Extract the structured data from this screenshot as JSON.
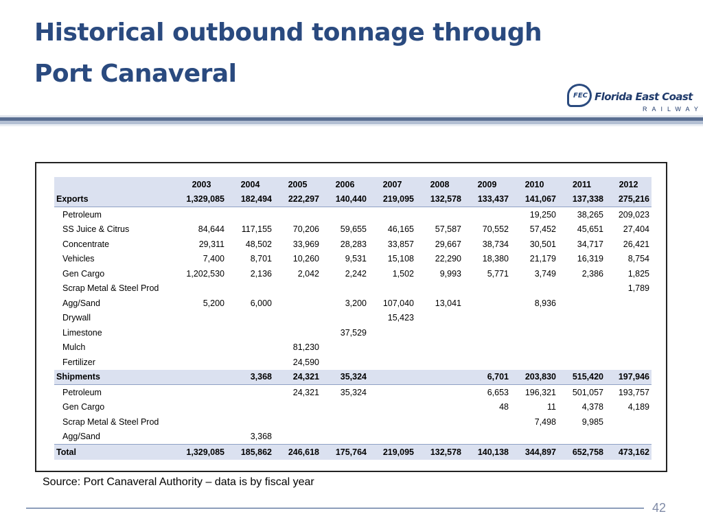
{
  "title": {
    "line1": "Historical outbound tonnage through",
    "line2": "Port Canaveral"
  },
  "logo": {
    "mark": "FEC",
    "name": "Florida East Coast",
    "sub": "RAILWAY",
    "icon": "fec-logo-icon"
  },
  "table": {
    "years": [
      "2003",
      "2004",
      "2005",
      "2006",
      "2007",
      "2008",
      "2009",
      "2010",
      "2011",
      "2012"
    ],
    "rows": [
      {
        "kind": "group",
        "label": "Exports",
        "values": [
          "1,329,085",
          "182,494",
          "222,297",
          "140,440",
          "219,095",
          "132,578",
          "133,437",
          "141,067",
          "137,338",
          "275,216"
        ]
      },
      {
        "kind": "item",
        "label": "Petroleum",
        "values": [
          "",
          "",
          "",
          "",
          "",
          "",
          "",
          "19,250",
          "38,265",
          "209,023"
        ]
      },
      {
        "kind": "item",
        "label": "SS Juice & Citrus",
        "values": [
          "84,644",
          "117,155",
          "70,206",
          "59,655",
          "46,165",
          "57,587",
          "70,552",
          "57,452",
          "45,651",
          "27,404"
        ]
      },
      {
        "kind": "item",
        "label": "Concentrate",
        "values": [
          "29,311",
          "48,502",
          "33,969",
          "28,283",
          "33,857",
          "29,667",
          "38,734",
          "30,501",
          "34,717",
          "26,421"
        ]
      },
      {
        "kind": "item",
        "label": "Vehicles",
        "values": [
          "7,400",
          "8,701",
          "10,260",
          "9,531",
          "15,108",
          "22,290",
          "18,380",
          "21,179",
          "16,319",
          "8,754"
        ]
      },
      {
        "kind": "item",
        "label": "Gen Cargo",
        "values": [
          "1,202,530",
          "2,136",
          "2,042",
          "2,242",
          "1,502",
          "9,993",
          "5,771",
          "3,749",
          "2,386",
          "1,825"
        ]
      },
      {
        "kind": "item",
        "label": "Scrap Metal & Steel Prod",
        "values": [
          "",
          "",
          "",
          "",
          "",
          "",
          "",
          "",
          "",
          "1,789"
        ]
      },
      {
        "kind": "item",
        "label": "Agg/Sand",
        "values": [
          "5,200",
          "6,000",
          "",
          "3,200",
          "107,040",
          "13,041",
          "",
          "8,936",
          "",
          ""
        ]
      },
      {
        "kind": "item",
        "label": "Drywall",
        "values": [
          "",
          "",
          "",
          "",
          "15,423",
          "",
          "",
          "",
          "",
          ""
        ]
      },
      {
        "kind": "item",
        "label": "Limestone",
        "values": [
          "",
          "",
          "",
          "37,529",
          "",
          "",
          "",
          "",
          "",
          ""
        ]
      },
      {
        "kind": "item",
        "label": "Mulch",
        "values": [
          "",
          "",
          "81,230",
          "",
          "",
          "",
          "",
          "",
          "",
          ""
        ]
      },
      {
        "kind": "item",
        "label": "Fertilizer",
        "values": [
          "",
          "",
          "24,590",
          "",
          "",
          "",
          "",
          "",
          "",
          ""
        ]
      },
      {
        "kind": "group",
        "label": "Shipments",
        "values": [
          "",
          "3,368",
          "24,321",
          "35,324",
          "",
          "",
          "6,701",
          "203,830",
          "515,420",
          "197,946"
        ]
      },
      {
        "kind": "item",
        "label": "Petroleum",
        "values": [
          "",
          "",
          "24,321",
          "35,324",
          "",
          "",
          "6,653",
          "196,321",
          "501,057",
          "193,757"
        ]
      },
      {
        "kind": "item",
        "label": "Gen Cargo",
        "values": [
          "",
          "",
          "",
          "",
          "",
          "",
          "48",
          "11",
          "4,378",
          "4,189"
        ]
      },
      {
        "kind": "item",
        "label": "Scrap Metal & Steel Prod",
        "values": [
          "",
          "",
          "",
          "",
          "",
          "",
          "",
          "7,498",
          "9,985",
          ""
        ]
      },
      {
        "kind": "item",
        "label": "Agg/Sand",
        "values": [
          "",
          "3,368",
          "",
          "",
          "",
          "",
          "",
          "",
          "",
          ""
        ]
      },
      {
        "kind": "total",
        "label": "Total",
        "values": [
          "1,329,085",
          "185,862",
          "246,618",
          "175,764",
          "219,095",
          "132,578",
          "140,138",
          "344,897",
          "652,758",
          "473,162"
        ]
      }
    ]
  },
  "source": "Source: Port Canaveral Authority – data is by fiscal year",
  "page_number": "42",
  "colors": {
    "title": "#2a4a7f",
    "header_fill": "#dbe1f0",
    "banner": "#5a6f92"
  }
}
